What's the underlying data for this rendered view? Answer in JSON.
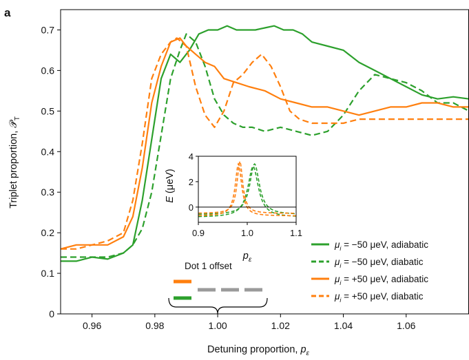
{
  "panel_label": "a",
  "chart_data": [
    {
      "id": "main",
      "type": "line",
      "xlabel": "Detuning proportion, ",
      "xlabel_var": "p",
      "xlabel_sub": "ε",
      "ylabel": "Triplet proportion, ",
      "ylabel_var": "𝒫",
      "ylabel_sub": "T",
      "xlim": [
        0.95,
        1.08
      ],
      "ylim": [
        0,
        0.75
      ],
      "xticks": [
        "0.96",
        "0.98",
        "1.00",
        "1.02",
        "1.04",
        "1.06"
      ],
      "xtick_values": [
        0.96,
        0.98,
        1.0,
        1.02,
        1.04,
        1.06
      ],
      "yticks": [
        "0",
        "0.1",
        "0.2",
        "0.3",
        "0.4",
        "0.5",
        "0.6",
        "0.7"
      ],
      "ytick_values": [
        0,
        0.1,
        0.2,
        0.3,
        0.4,
        0.5,
        0.6,
        0.7
      ],
      "grid": false,
      "legend_position": "bottom-right",
      "series": [
        {
          "name_prefix": "μ",
          "name_sub": "i",
          "name": " = −50 μeV, adiabatic",
          "color": "#2ca02c",
          "dash": "solid",
          "x": [
            0.95,
            0.955,
            0.96,
            0.965,
            0.97,
            0.973,
            0.976,
            0.979,
            0.982,
            0.985,
            0.988,
            0.991,
            0.994,
            0.997,
            1.0,
            1.003,
            1.006,
            1.009,
            1.012,
            1.015,
            1.018,
            1.021,
            1.024,
            1.027,
            1.03,
            1.035,
            1.04,
            1.045,
            1.05,
            1.055,
            1.06,
            1.065,
            1.07,
            1.075,
            1.08
          ],
          "y": [
            0.13,
            0.13,
            0.14,
            0.135,
            0.15,
            0.17,
            0.28,
            0.43,
            0.58,
            0.64,
            0.62,
            0.65,
            0.69,
            0.7,
            0.7,
            0.71,
            0.7,
            0.7,
            0.7,
            0.705,
            0.71,
            0.7,
            0.7,
            0.69,
            0.67,
            0.66,
            0.65,
            0.62,
            0.6,
            0.58,
            0.56,
            0.54,
            0.53,
            0.535,
            0.53
          ]
        },
        {
          "name_prefix": "μ",
          "name_sub": "i",
          "name": " = −50 μeV, diabatic",
          "color": "#2ca02c",
          "dash": "dashed",
          "x": [
            0.95,
            0.955,
            0.96,
            0.965,
            0.97,
            0.973,
            0.976,
            0.979,
            0.982,
            0.985,
            0.988,
            0.99,
            0.993,
            0.996,
            0.999,
            1.002,
            1.005,
            1.008,
            1.011,
            1.015,
            1.02,
            1.025,
            1.03,
            1.035,
            1.04,
            1.045,
            1.05,
            1.055,
            1.06,
            1.065,
            1.07,
            1.075,
            1.08
          ],
          "y": [
            0.14,
            0.14,
            0.14,
            0.14,
            0.15,
            0.17,
            0.21,
            0.3,
            0.44,
            0.58,
            0.65,
            0.69,
            0.67,
            0.61,
            0.53,
            0.49,
            0.47,
            0.46,
            0.46,
            0.45,
            0.46,
            0.45,
            0.44,
            0.45,
            0.49,
            0.55,
            0.59,
            0.58,
            0.57,
            0.55,
            0.52,
            0.52,
            0.5
          ]
        },
        {
          "name_prefix": "μ",
          "name_sub": "i",
          "name": " = +50 μeV, adiabatic",
          "color": "#ff7f0e",
          "dash": "solid",
          "x": [
            0.95,
            0.955,
            0.96,
            0.965,
            0.97,
            0.973,
            0.976,
            0.979,
            0.982,
            0.985,
            0.988,
            0.99,
            0.993,
            0.996,
            0.999,
            1.002,
            1.006,
            1.01,
            1.015,
            1.02,
            1.025,
            1.03,
            1.035,
            1.04,
            1.045,
            1.05,
            1.055,
            1.06,
            1.065,
            1.07,
            1.075,
            1.08
          ],
          "y": [
            0.16,
            0.17,
            0.17,
            0.17,
            0.19,
            0.24,
            0.36,
            0.52,
            0.61,
            0.67,
            0.68,
            0.66,
            0.64,
            0.62,
            0.61,
            0.58,
            0.57,
            0.56,
            0.55,
            0.53,
            0.52,
            0.51,
            0.51,
            0.5,
            0.49,
            0.5,
            0.51,
            0.51,
            0.52,
            0.52,
            0.51,
            0.51
          ]
        },
        {
          "name_prefix": "μ",
          "name_sub": "i",
          "name": " = +50 μeV, diabatic",
          "color": "#ff7f0e",
          "dash": "dashed",
          "x": [
            0.95,
            0.955,
            0.96,
            0.965,
            0.97,
            0.973,
            0.976,
            0.979,
            0.982,
            0.985,
            0.987,
            0.99,
            0.993,
            0.996,
            0.999,
            1.002,
            1.005,
            1.008,
            1.011,
            1.014,
            1.017,
            1.02,
            1.023,
            1.026,
            1.03,
            1.035,
            1.04,
            1.045,
            1.05,
            1.055,
            1.06,
            1.065,
            1.07,
            1.075,
            1.08
          ],
          "y": [
            0.16,
            0.16,
            0.17,
            0.18,
            0.2,
            0.28,
            0.42,
            0.58,
            0.64,
            0.67,
            0.68,
            0.66,
            0.56,
            0.49,
            0.46,
            0.5,
            0.57,
            0.59,
            0.62,
            0.64,
            0.61,
            0.56,
            0.5,
            0.48,
            0.47,
            0.47,
            0.47,
            0.48,
            0.48,
            0.48,
            0.48,
            0.48,
            0.48,
            0.48,
            0.48
          ]
        }
      ]
    },
    {
      "id": "inset",
      "type": "line",
      "xlabel_var": "p",
      "xlabel_sub": "ε",
      "ylabel_var": "E",
      "ylabel": " (μeV)",
      "xlim": [
        0.9,
        1.1
      ],
      "ylim": [
        -1.2,
        4.0
      ],
      "xticks": [
        "0.9",
        "1.0",
        "1.1"
      ],
      "xtick_values": [
        0.9,
        1.0,
        1.1
      ],
      "yticks": [
        "0",
        "2",
        "4"
      ],
      "ytick_values": [
        0,
        2,
        4
      ],
      "hline": 0,
      "series": [
        {
          "color": "#2ca02c",
          "dash": "dashed",
          "x0": 1.015,
          "amplitude": 3.4,
          "width": 0.012,
          "baseline": -0.6
        },
        {
          "color": "#2ca02c",
          "dash": "dashed",
          "x0": 1.012,
          "amplitude": 3.2,
          "width": 0.013,
          "baseline": -0.8
        },
        {
          "color": "#ff7f0e",
          "dash": "dashed",
          "x0": 0.985,
          "amplitude": 3.6,
          "width": 0.007,
          "baseline": -0.5
        },
        {
          "color": "#ff7f0e",
          "dash": "dashed",
          "x0": 0.982,
          "amplitude": 3.4,
          "width": 0.008,
          "baseline": -0.7
        }
      ]
    }
  ],
  "annotation": {
    "title": "Dot 1 offset",
    "orange_color": "#ff7f0e",
    "green_color": "#2ca02c",
    "gray_color": "#9a9a9a"
  }
}
